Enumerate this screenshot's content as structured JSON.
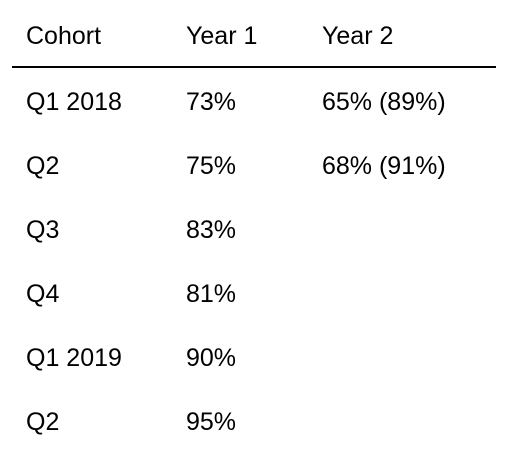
{
  "table": {
    "headers": [
      "Cohort",
      "Year 1",
      "Year 2"
    ],
    "rows": [
      [
        "Q1 2018",
        "73%",
        "65% (89%)"
      ],
      [
        "Q2",
        "75%",
        "68% (91%)"
      ],
      [
        "Q3",
        "83%",
        ""
      ],
      [
        "Q4",
        "81%",
        ""
      ],
      [
        "Q1 2019",
        "90%",
        ""
      ],
      [
        "Q2",
        "95%",
        ""
      ]
    ]
  }
}
